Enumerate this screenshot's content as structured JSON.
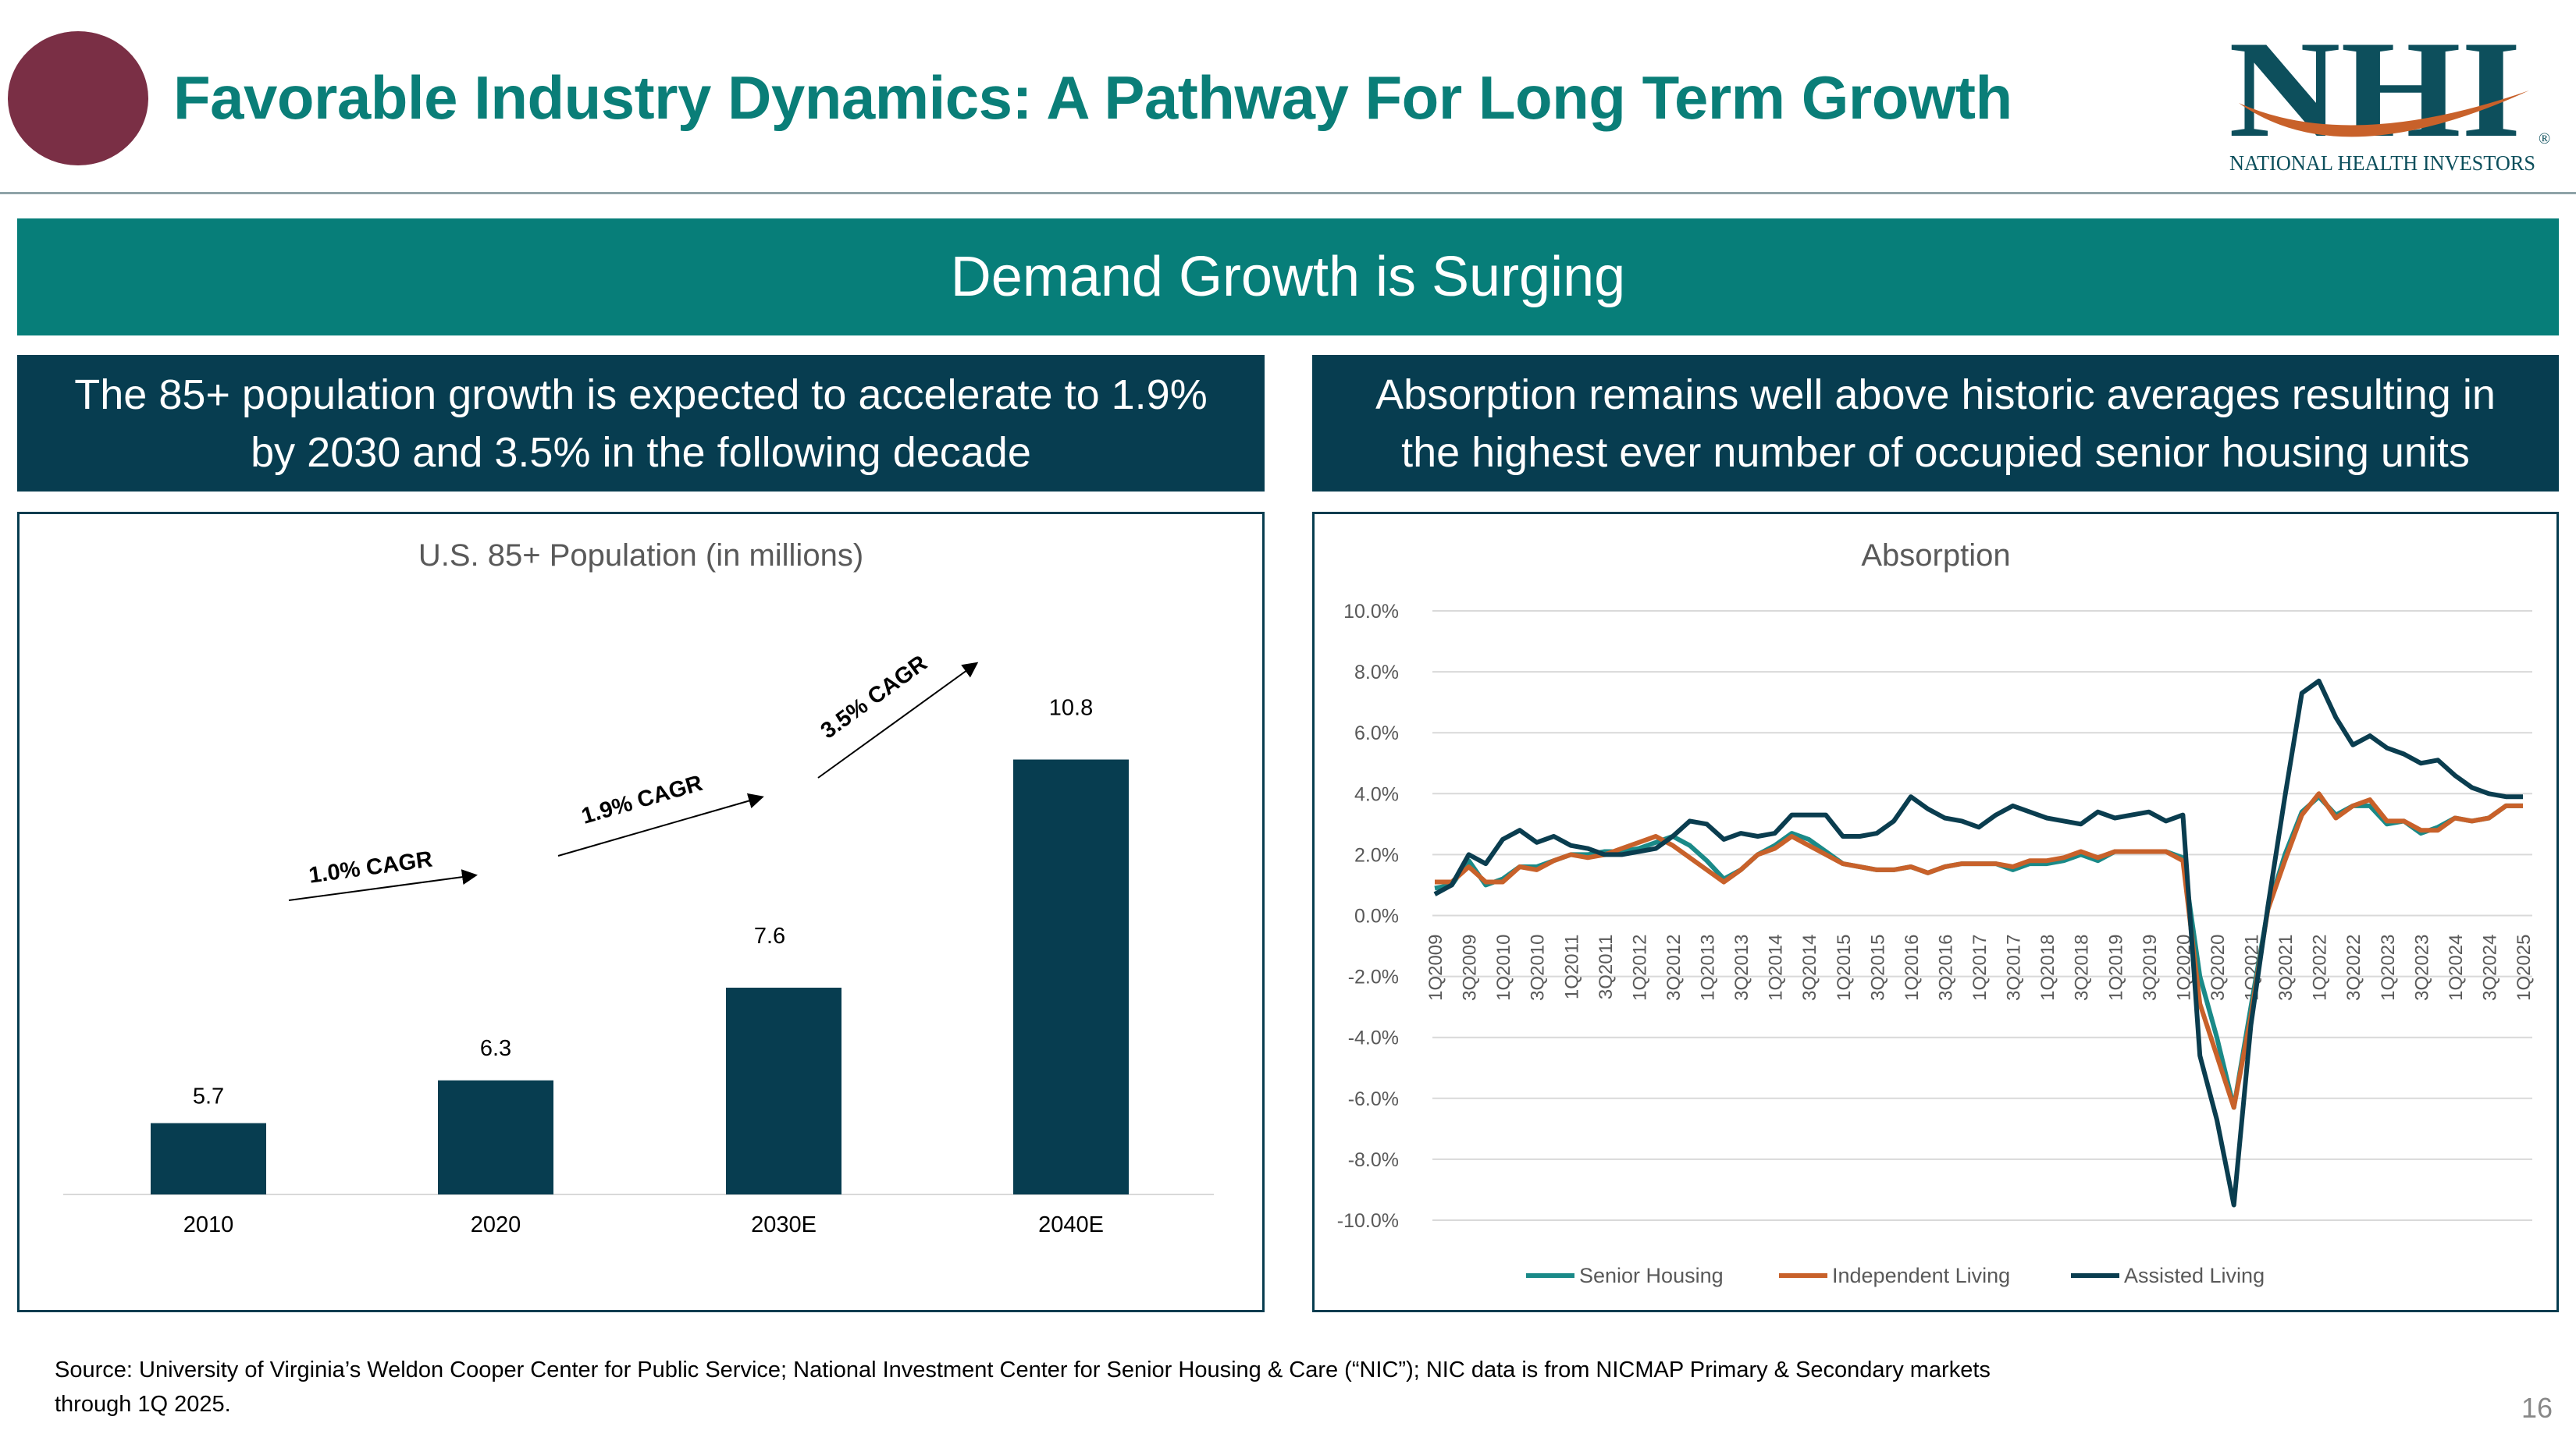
{
  "header": {
    "title": "Favorable Industry Dynamics: A Pathway For Long Term Growth",
    "logo_text": "NHI",
    "logo_subtext": "NATIONAL HEALTH INVESTORS",
    "logo_reg": "®"
  },
  "banner": {
    "text": "Demand Growth is Surging"
  },
  "left_subhead": {
    "line1": "The 85+ population growth is expected to accelerate to 1.9%",
    "line2": "by 2030 and 3.5% in the following decade"
  },
  "right_subhead": {
    "line1": "Absorption remains well above historic averages resulting in",
    "line2": "the highest ever number of occupied senior housing units"
  },
  "colors": {
    "accent": "#077e79",
    "navy": "#073d50",
    "maroon": "#7a2f45",
    "orange": "#c8612a",
    "teal": "#1a8a88",
    "dark": "#0a3d4f"
  },
  "chart_data": [
    {
      "type": "bar",
      "title": "U.S. 85+ Population (in millions)",
      "categories": [
        "2010",
        "2020",
        "2030E",
        "2040E"
      ],
      "values": [
        5.7,
        6.3,
        7.6,
        10.8
      ],
      "data_labels": [
        "5.7",
        "6.3",
        "7.6",
        "10.8"
      ],
      "annotations": [
        "1.0% CAGR",
        "1.9% CAGR",
        "3.5% CAGR"
      ],
      "ylim": [
        4.7,
        11.9
      ],
      "color": "#073d50"
    },
    {
      "type": "line",
      "title": "Absorption",
      "yticks": [
        "10.0%",
        "8.0%",
        "6.0%",
        "4.0%",
        "2.0%",
        "0.0%",
        "-2.0%",
        "-4.0%",
        "-6.0%",
        "-8.0%",
        "-10.0%"
      ],
      "ylim": [
        -10,
        10
      ],
      "xticks": [
        "1Q2009",
        "3Q2009",
        "1Q2010",
        "3Q2010",
        "1Q2011",
        "3Q2011",
        "1Q2012",
        "3Q2012",
        "1Q2013",
        "3Q2013",
        "1Q2014",
        "3Q2014",
        "1Q2015",
        "3Q2015",
        "1Q2016",
        "3Q2016",
        "1Q2017",
        "3Q2017",
        "1Q2018",
        "3Q2018",
        "1Q2019",
        "3Q2019",
        "1Q2020",
        "3Q2020",
        "1Q2021",
        "3Q2021",
        "1Q2022",
        "3Q2022",
        "1Q2023",
        "3Q2023",
        "1Q2024",
        "3Q2024",
        "1Q2025"
      ],
      "x": [
        "1Q2009",
        "2Q2009",
        "3Q2009",
        "4Q2009",
        "1Q2010",
        "2Q2010",
        "3Q2010",
        "4Q2010",
        "1Q2011",
        "2Q2011",
        "3Q2011",
        "4Q2011",
        "1Q2012",
        "2Q2012",
        "3Q2012",
        "4Q2012",
        "1Q2013",
        "2Q2013",
        "3Q2013",
        "4Q2013",
        "1Q2014",
        "2Q2014",
        "3Q2014",
        "4Q2014",
        "1Q2015",
        "2Q2015",
        "3Q2015",
        "4Q2015",
        "1Q2016",
        "2Q2016",
        "3Q2016",
        "4Q2016",
        "1Q2017",
        "2Q2017",
        "3Q2017",
        "4Q2017",
        "1Q2018",
        "2Q2018",
        "3Q2018",
        "4Q2018",
        "1Q2019",
        "2Q2019",
        "3Q2019",
        "4Q2019",
        "1Q2020",
        "2Q2020",
        "3Q2020",
        "4Q2020",
        "1Q2021",
        "2Q2021",
        "3Q2021",
        "4Q2021",
        "1Q2022",
        "2Q2022",
        "3Q2022",
        "4Q2022",
        "1Q2023",
        "2Q2023",
        "3Q2023",
        "4Q2023",
        "1Q2024",
        "2Q2024",
        "3Q2024",
        "4Q2024",
        "1Q2025"
      ],
      "series": [
        {
          "name": "Senior Housing",
          "color": "#1a8a88",
          "values": [
            0.9,
            1.0,
            1.8,
            1.0,
            1.2,
            1.6,
            1.6,
            1.8,
            2.0,
            2.0,
            2.1,
            2.1,
            2.2,
            2.4,
            2.6,
            2.3,
            1.8,
            1.2,
            1.5,
            2.0,
            2.3,
            2.7,
            2.5,
            2.1,
            1.7,
            1.6,
            1.5,
            1.5,
            1.6,
            1.4,
            1.6,
            1.7,
            1.7,
            1.7,
            1.5,
            1.7,
            1.7,
            1.8,
            2.0,
            1.8,
            2.1,
            2.1,
            2.1,
            2.1,
            1.9,
            -2.0,
            -4.0,
            -6.3,
            -3.0,
            0.2,
            2.0,
            3.4,
            3.9,
            3.3,
            3.6,
            3.6,
            3.0,
            3.1,
            2.7,
            2.9,
            3.2,
            3.1,
            3.2,
            3.6,
            3.6
          ]
        },
        {
          "name": "Independent Living",
          "color": "#c8612a",
          "values": [
            1.1,
            1.1,
            1.6,
            1.1,
            1.1,
            1.6,
            1.5,
            1.8,
            2.0,
            1.9,
            2.0,
            2.2,
            2.4,
            2.6,
            2.3,
            1.9,
            1.5,
            1.1,
            1.5,
            2.0,
            2.2,
            2.6,
            2.3,
            2.0,
            1.7,
            1.6,
            1.5,
            1.5,
            1.6,
            1.4,
            1.6,
            1.7,
            1.7,
            1.7,
            1.6,
            1.8,
            1.8,
            1.9,
            2.1,
            1.9,
            2.1,
            2.1,
            2.1,
            2.1,
            1.8,
            -2.9,
            -4.6,
            -6.3,
            -3.3,
            0.2,
            1.8,
            3.3,
            4.0,
            3.2,
            3.6,
            3.8,
            3.1,
            3.1,
            2.8,
            2.8,
            3.2,
            3.1,
            3.2,
            3.6,
            3.6
          ]
        },
        {
          "name": "Assisted Living",
          "color": "#0a3d4f",
          "values": [
            0.7,
            1.0,
            2.0,
            1.7,
            2.5,
            2.8,
            2.4,
            2.6,
            2.3,
            2.2,
            2.0,
            2.0,
            2.1,
            2.2,
            2.6,
            3.1,
            3.0,
            2.5,
            2.7,
            2.6,
            2.7,
            3.3,
            3.3,
            3.3,
            2.6,
            2.6,
            2.7,
            3.1,
            3.9,
            3.5,
            3.2,
            3.1,
            2.9,
            3.3,
            3.6,
            3.4,
            3.2,
            3.1,
            3.0,
            3.4,
            3.2,
            3.3,
            3.4,
            3.1,
            3.3,
            -4.6,
            -6.7,
            -9.5,
            -3.6,
            0.3,
            3.9,
            7.3,
            7.7,
            6.5,
            5.6,
            5.9,
            5.5,
            5.3,
            5.0,
            5.1,
            4.6,
            4.2,
            4.0,
            3.9,
            3.9
          ]
        }
      ],
      "legend_position": "bottom"
    }
  ],
  "source": {
    "line1": "Source:  University of Virginia’s Weldon Cooper Center for Public Service; National Investment Center for Senior Housing & Care (“NIC”); NIC data is from NICMAP Primary & Secondary markets",
    "line2": "through 1Q 2025."
  },
  "page_number": "16"
}
